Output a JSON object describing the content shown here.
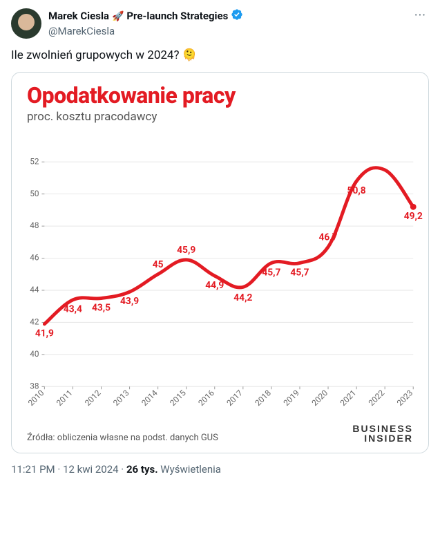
{
  "user": {
    "display_name": "Marek Ciesla",
    "rocket_emoji": "🚀",
    "suffix": "Pre-launch Strategies",
    "handle": "@MarekCiesla"
  },
  "tweet": {
    "text": "Ile zwolnień grupowych w 2024? 🫠"
  },
  "chart": {
    "type": "line",
    "title": "Opodatkowanie pracy",
    "subtitle": "proc. kosztu pracodawcy",
    "line_color": "#e31b23",
    "line_width": 5,
    "background_color": "#ffffff",
    "grid_color": "#e6e6e6",
    "axis_text_color": "#666666",
    "data_label_color": "#e31b23",
    "data_label_fontsize": 14,
    "title_color": "#e31b23",
    "title_fontsize": 32,
    "subtitle_color": "#555555",
    "subtitle_fontsize": 17,
    "ylim": [
      38,
      52
    ],
    "ytick_step": 2,
    "years": [
      2010,
      2011,
      2012,
      2013,
      2014,
      2015,
      2016,
      2017,
      2018,
      2019,
      2020,
      2021,
      2022,
      2023
    ],
    "values": [
      41.9,
      43.4,
      43.5,
      43.9,
      45.0,
      45.9,
      44.9,
      44.2,
      45.7,
      45.7,
      46.7,
      50.8,
      51.5,
      49.2
    ],
    "labels": [
      "41,9",
      "43,4",
      "43,5",
      "43,9",
      "45",
      "45,9",
      "44,9",
      "44,2",
      "45,7",
      "45,7",
      "46,7",
      "50,8",
      "",
      "49,2"
    ],
    "label_offsets_y": [
      18,
      18,
      18,
      18,
      -10,
      -10,
      18,
      20,
      18,
      18,
      -10,
      18,
      0,
      18
    ],
    "source": "Źródła: obliczenia własne na podst. danych GUS",
    "logo_line1": "BUSINESS",
    "logo_line2": "INSIDER"
  },
  "meta": {
    "time": "11:21 PM",
    "date": "12 kwi 2024",
    "views_count": "26 tys.",
    "views_label": "Wyświetlenia"
  }
}
